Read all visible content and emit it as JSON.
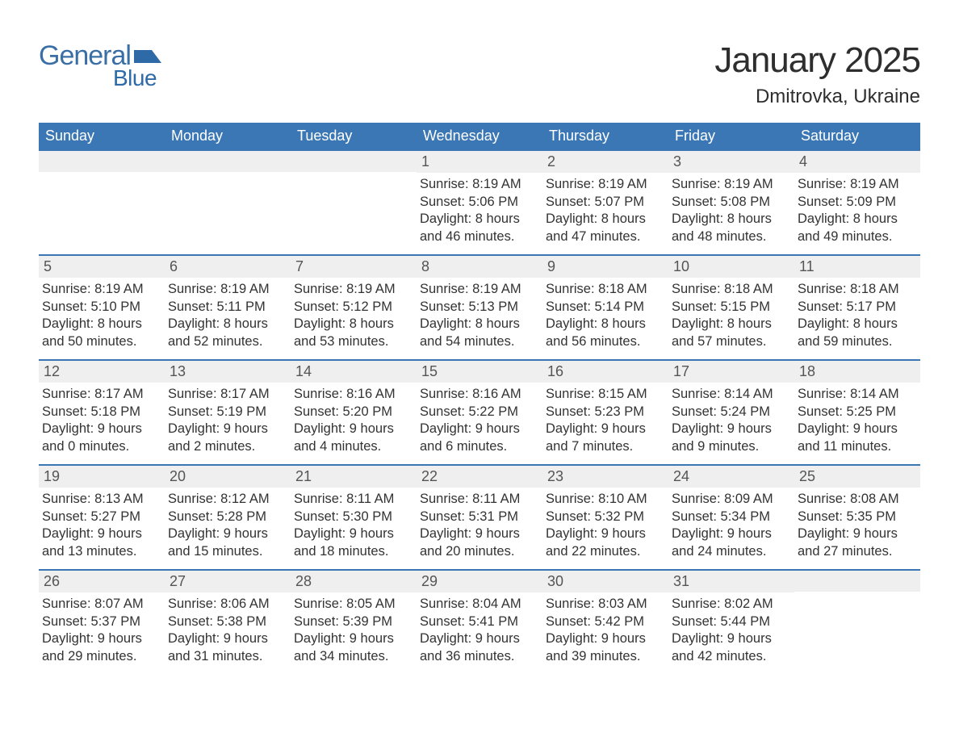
{
  "logo": {
    "word1": "General",
    "word2": "Blue",
    "shape_color": "#2f6aa8",
    "text_color": "#3a6fa6"
  },
  "title": "January 2025",
  "location": "Dmitrovka, Ukraine",
  "colors": {
    "header_bg": "#3b77b4",
    "header_text": "#ffffff",
    "daynum_bg": "#efefef",
    "daynum_text": "#555555",
    "body_text": "#333333",
    "rule": "#3b77b4",
    "page_bg": "#ffffff"
  },
  "fonts": {
    "title_size_pt": 33,
    "location_size_pt": 18,
    "weekday_size_pt": 14,
    "daynum_size_pt": 14,
    "body_size_pt": 12.5
  },
  "weekdays": [
    "Sunday",
    "Monday",
    "Tuesday",
    "Wednesday",
    "Thursday",
    "Friday",
    "Saturday"
  ],
  "labels": {
    "sunrise": "Sunrise:",
    "sunset": "Sunset:",
    "daylight": "Daylight:"
  },
  "weeks": [
    [
      {
        "blank": true
      },
      {
        "blank": true
      },
      {
        "blank": true
      },
      {
        "n": "1",
        "sr": "8:19 AM",
        "ss": "5:06 PM",
        "dl1": "8 hours",
        "dl2": "and 46 minutes."
      },
      {
        "n": "2",
        "sr": "8:19 AM",
        "ss": "5:07 PM",
        "dl1": "8 hours",
        "dl2": "and 47 minutes."
      },
      {
        "n": "3",
        "sr": "8:19 AM",
        "ss": "5:08 PM",
        "dl1": "8 hours",
        "dl2": "and 48 minutes."
      },
      {
        "n": "4",
        "sr": "8:19 AM",
        "ss": "5:09 PM",
        "dl1": "8 hours",
        "dl2": "and 49 minutes."
      }
    ],
    [
      {
        "n": "5",
        "sr": "8:19 AM",
        "ss": "5:10 PM",
        "dl1": "8 hours",
        "dl2": "and 50 minutes."
      },
      {
        "n": "6",
        "sr": "8:19 AM",
        "ss": "5:11 PM",
        "dl1": "8 hours",
        "dl2": "and 52 minutes."
      },
      {
        "n": "7",
        "sr": "8:19 AM",
        "ss": "5:12 PM",
        "dl1": "8 hours",
        "dl2": "and 53 minutes."
      },
      {
        "n": "8",
        "sr": "8:19 AM",
        "ss": "5:13 PM",
        "dl1": "8 hours",
        "dl2": "and 54 minutes."
      },
      {
        "n": "9",
        "sr": "8:18 AM",
        "ss": "5:14 PM",
        "dl1": "8 hours",
        "dl2": "and 56 minutes."
      },
      {
        "n": "10",
        "sr": "8:18 AM",
        "ss": "5:15 PM",
        "dl1": "8 hours",
        "dl2": "and 57 minutes."
      },
      {
        "n": "11",
        "sr": "8:18 AM",
        "ss": "5:17 PM",
        "dl1": "8 hours",
        "dl2": "and 59 minutes."
      }
    ],
    [
      {
        "n": "12",
        "sr": "8:17 AM",
        "ss": "5:18 PM",
        "dl1": "9 hours",
        "dl2": "and 0 minutes."
      },
      {
        "n": "13",
        "sr": "8:17 AM",
        "ss": "5:19 PM",
        "dl1": "9 hours",
        "dl2": "and 2 minutes."
      },
      {
        "n": "14",
        "sr": "8:16 AM",
        "ss": "5:20 PM",
        "dl1": "9 hours",
        "dl2": "and 4 minutes."
      },
      {
        "n": "15",
        "sr": "8:16 AM",
        "ss": "5:22 PM",
        "dl1": "9 hours",
        "dl2": "and 6 minutes."
      },
      {
        "n": "16",
        "sr": "8:15 AM",
        "ss": "5:23 PM",
        "dl1": "9 hours",
        "dl2": "and 7 minutes."
      },
      {
        "n": "17",
        "sr": "8:14 AM",
        "ss": "5:24 PM",
        "dl1": "9 hours",
        "dl2": "and 9 minutes."
      },
      {
        "n": "18",
        "sr": "8:14 AM",
        "ss": "5:25 PM",
        "dl1": "9 hours",
        "dl2": "and 11 minutes."
      }
    ],
    [
      {
        "n": "19",
        "sr": "8:13 AM",
        "ss": "5:27 PM",
        "dl1": "9 hours",
        "dl2": "and 13 minutes."
      },
      {
        "n": "20",
        "sr": "8:12 AM",
        "ss": "5:28 PM",
        "dl1": "9 hours",
        "dl2": "and 15 minutes."
      },
      {
        "n": "21",
        "sr": "8:11 AM",
        "ss": "5:30 PM",
        "dl1": "9 hours",
        "dl2": "and 18 minutes."
      },
      {
        "n": "22",
        "sr": "8:11 AM",
        "ss": "5:31 PM",
        "dl1": "9 hours",
        "dl2": "and 20 minutes."
      },
      {
        "n": "23",
        "sr": "8:10 AM",
        "ss": "5:32 PM",
        "dl1": "9 hours",
        "dl2": "and 22 minutes."
      },
      {
        "n": "24",
        "sr": "8:09 AM",
        "ss": "5:34 PM",
        "dl1": "9 hours",
        "dl2": "and 24 minutes."
      },
      {
        "n": "25",
        "sr": "8:08 AM",
        "ss": "5:35 PM",
        "dl1": "9 hours",
        "dl2": "and 27 minutes."
      }
    ],
    [
      {
        "n": "26",
        "sr": "8:07 AM",
        "ss": "5:37 PM",
        "dl1": "9 hours",
        "dl2": "and 29 minutes."
      },
      {
        "n": "27",
        "sr": "8:06 AM",
        "ss": "5:38 PM",
        "dl1": "9 hours",
        "dl2": "and 31 minutes."
      },
      {
        "n": "28",
        "sr": "8:05 AM",
        "ss": "5:39 PM",
        "dl1": "9 hours",
        "dl2": "and 34 minutes."
      },
      {
        "n": "29",
        "sr": "8:04 AM",
        "ss": "5:41 PM",
        "dl1": "9 hours",
        "dl2": "and 36 minutes."
      },
      {
        "n": "30",
        "sr": "8:03 AM",
        "ss": "5:42 PM",
        "dl1": "9 hours",
        "dl2": "and 39 minutes."
      },
      {
        "n": "31",
        "sr": "8:02 AM",
        "ss": "5:44 PM",
        "dl1": "9 hours",
        "dl2": "and 42 minutes."
      },
      {
        "blank": true
      }
    ]
  ]
}
